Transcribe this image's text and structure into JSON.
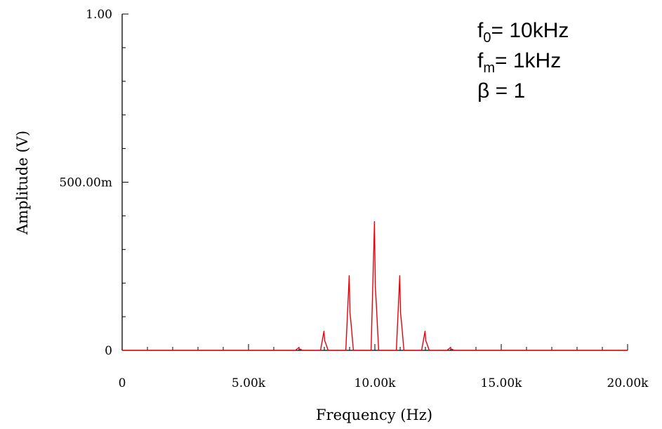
{
  "chart_data": {
    "type": "line",
    "title": "",
    "xlabel": "Frequency (Hz)",
    "ylabel": "Amplitude (V)",
    "xlim": [
      0,
      20000
    ],
    "ylim": [
      0,
      1.0
    ],
    "x_ticks": [
      {
        "value": 0,
        "label": "0"
      },
      {
        "value": 5000,
        "label": "5.00k"
      },
      {
        "value": 10000,
        "label": "10.00k"
      },
      {
        "value": 15000,
        "label": "15.00k"
      },
      {
        "value": 20000,
        "label": "20.00k"
      }
    ],
    "y_ticks": [
      {
        "value": 0,
        "label": "0"
      },
      {
        "value": 0.5,
        "label": "500.00m"
      },
      {
        "value": 1.0,
        "label": "1.00"
      }
    ],
    "grid": false,
    "line_color": "#e8000a",
    "peaks": [
      {
        "x": 7000,
        "y": 0.008
      },
      {
        "x": 8000,
        "y": 0.057
      },
      {
        "x": 9000,
        "y": 0.222
      },
      {
        "x": 10000,
        "y": 0.383
      },
      {
        "x": 11000,
        "y": 0.222
      },
      {
        "x": 12000,
        "y": 0.057
      },
      {
        "x": 13000,
        "y": 0.008
      }
    ],
    "annotations": [
      {
        "base": "f",
        "sub": "0",
        "text": "= 10kHz"
      },
      {
        "base": "f",
        "sub": "m",
        "text": "= 1kHz"
      },
      {
        "base": "β",
        "sub": "",
        "text": " = 1"
      }
    ]
  }
}
